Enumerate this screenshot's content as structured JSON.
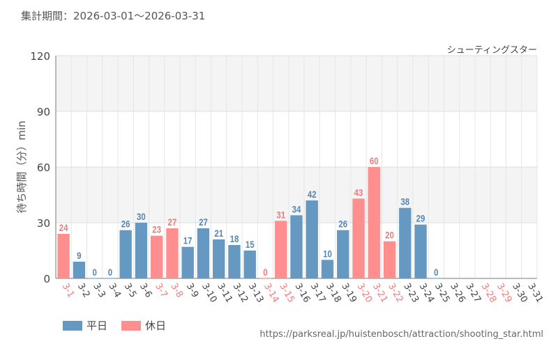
{
  "header": {
    "period_label": "集計期間：2026-03-01～2026-03-31",
    "attraction_name": "シューティングスター"
  },
  "legend": {
    "weekday_label": "平日",
    "holiday_label": "休日"
  },
  "footer": {
    "source_url": "https://parksreal.jp/huistenbosch/attraction/shooting_star.html"
  },
  "colors": {
    "weekday": "#6699c2",
    "holiday": "#ff8f8f",
    "weekday_text": "#5088b8",
    "holiday_text": "#f07a7a"
  },
  "chart_data": {
    "type": "bar",
    "title": "シューティングスター",
    "ylabel": "待ち時間（分）min",
    "xlabel": "",
    "ylim": [
      0,
      120
    ],
    "yticks": [
      0,
      30,
      60,
      90,
      120
    ],
    "categories": [
      "3-1",
      "3-2",
      "3-3",
      "3-4",
      "3-5",
      "3-6",
      "3-7",
      "3-8",
      "3-9",
      "3-10",
      "3-11",
      "3-12",
      "3-13",
      "3-14",
      "3-15",
      "3-16",
      "3-17",
      "3-18",
      "3-19",
      "3-20",
      "3-21",
      "3-22",
      "3-23",
      "3-24",
      "3-25",
      "3-26",
      "3-27",
      "3-28",
      "3-29",
      "3-30",
      "3-31"
    ],
    "values": [
      24,
      9,
      0,
      0,
      26,
      30,
      23,
      27,
      17,
      27,
      21,
      18,
      15,
      0,
      31,
      34,
      42,
      10,
      26,
      43,
      60,
      20,
      38,
      29,
      0,
      null,
      null,
      null,
      null,
      null,
      null
    ],
    "day_type": [
      "holiday",
      "weekday",
      "weekday",
      "weekday",
      "weekday",
      "weekday",
      "holiday",
      "holiday",
      "weekday",
      "weekday",
      "weekday",
      "weekday",
      "weekday",
      "holiday",
      "holiday",
      "weekday",
      "weekday",
      "weekday",
      "weekday",
      "holiday",
      "holiday",
      "holiday",
      "weekday",
      "weekday",
      "weekday",
      "weekday",
      "weekday",
      "holiday",
      "holiday",
      "weekday",
      "weekday"
    ],
    "series": [
      {
        "name": "平日",
        "key": "weekday"
      },
      {
        "name": "休日",
        "key": "holiday"
      }
    ]
  }
}
